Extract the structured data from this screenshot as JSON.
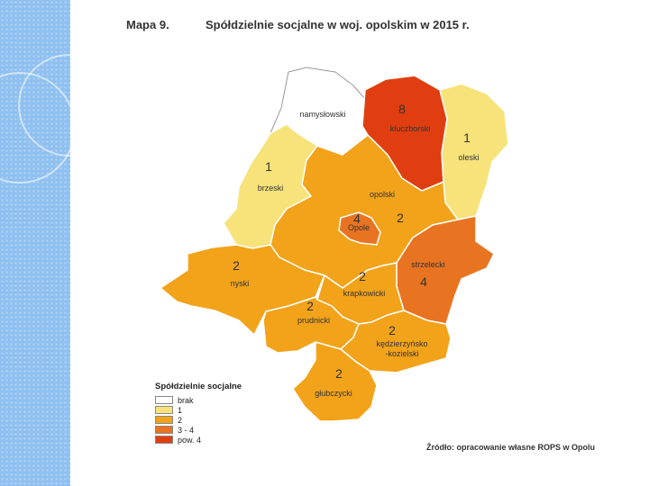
{
  "title": {
    "label": "Mapa 9.",
    "text": "Spółdzielnie socjalne w woj. opolskim w 2015 r."
  },
  "source": "Źródło: opracowanie własne ROPS w Opolu",
  "colors": {
    "brak": "#ffffff",
    "one": "#f8e27a",
    "two": "#f2a31a",
    "three_four": "#e87422",
    "over_four": "#e03e10",
    "border": "#ffffff",
    "sidebar": "#8fc0f0"
  },
  "legend": {
    "title": "Spółdzielnie socjalne",
    "items": [
      {
        "label": "brak",
        "color": "#ffffff"
      },
      {
        "label": "1",
        "color": "#f8e27a"
      },
      {
        "label": "2",
        "color": "#f2a31a"
      },
      {
        "label": "3 - 4",
        "color": "#e87422"
      },
      {
        "label": "pow. 4",
        "color": "#e03e10"
      }
    ]
  },
  "regions": [
    {
      "name": "namysłowski",
      "count": ""
    },
    {
      "name": "kluczborski",
      "count": "8"
    },
    {
      "name": "oleski",
      "count": "1"
    },
    {
      "name": "brzeski",
      "count": "1"
    },
    {
      "name": "opolski",
      "count": "2"
    },
    {
      "name": "Opole",
      "count": "4"
    },
    {
      "name": "strzelecki",
      "count": "4"
    },
    {
      "name": "nyski",
      "count": "2"
    },
    {
      "name": "krapkowicki",
      "count": "2"
    },
    {
      "name": "prudnicki",
      "count": "2"
    },
    {
      "name": "kędzierzyńsko -kozielski",
      "count": "2"
    },
    {
      "name": "głubczycki",
      "count": "2"
    }
  ]
}
